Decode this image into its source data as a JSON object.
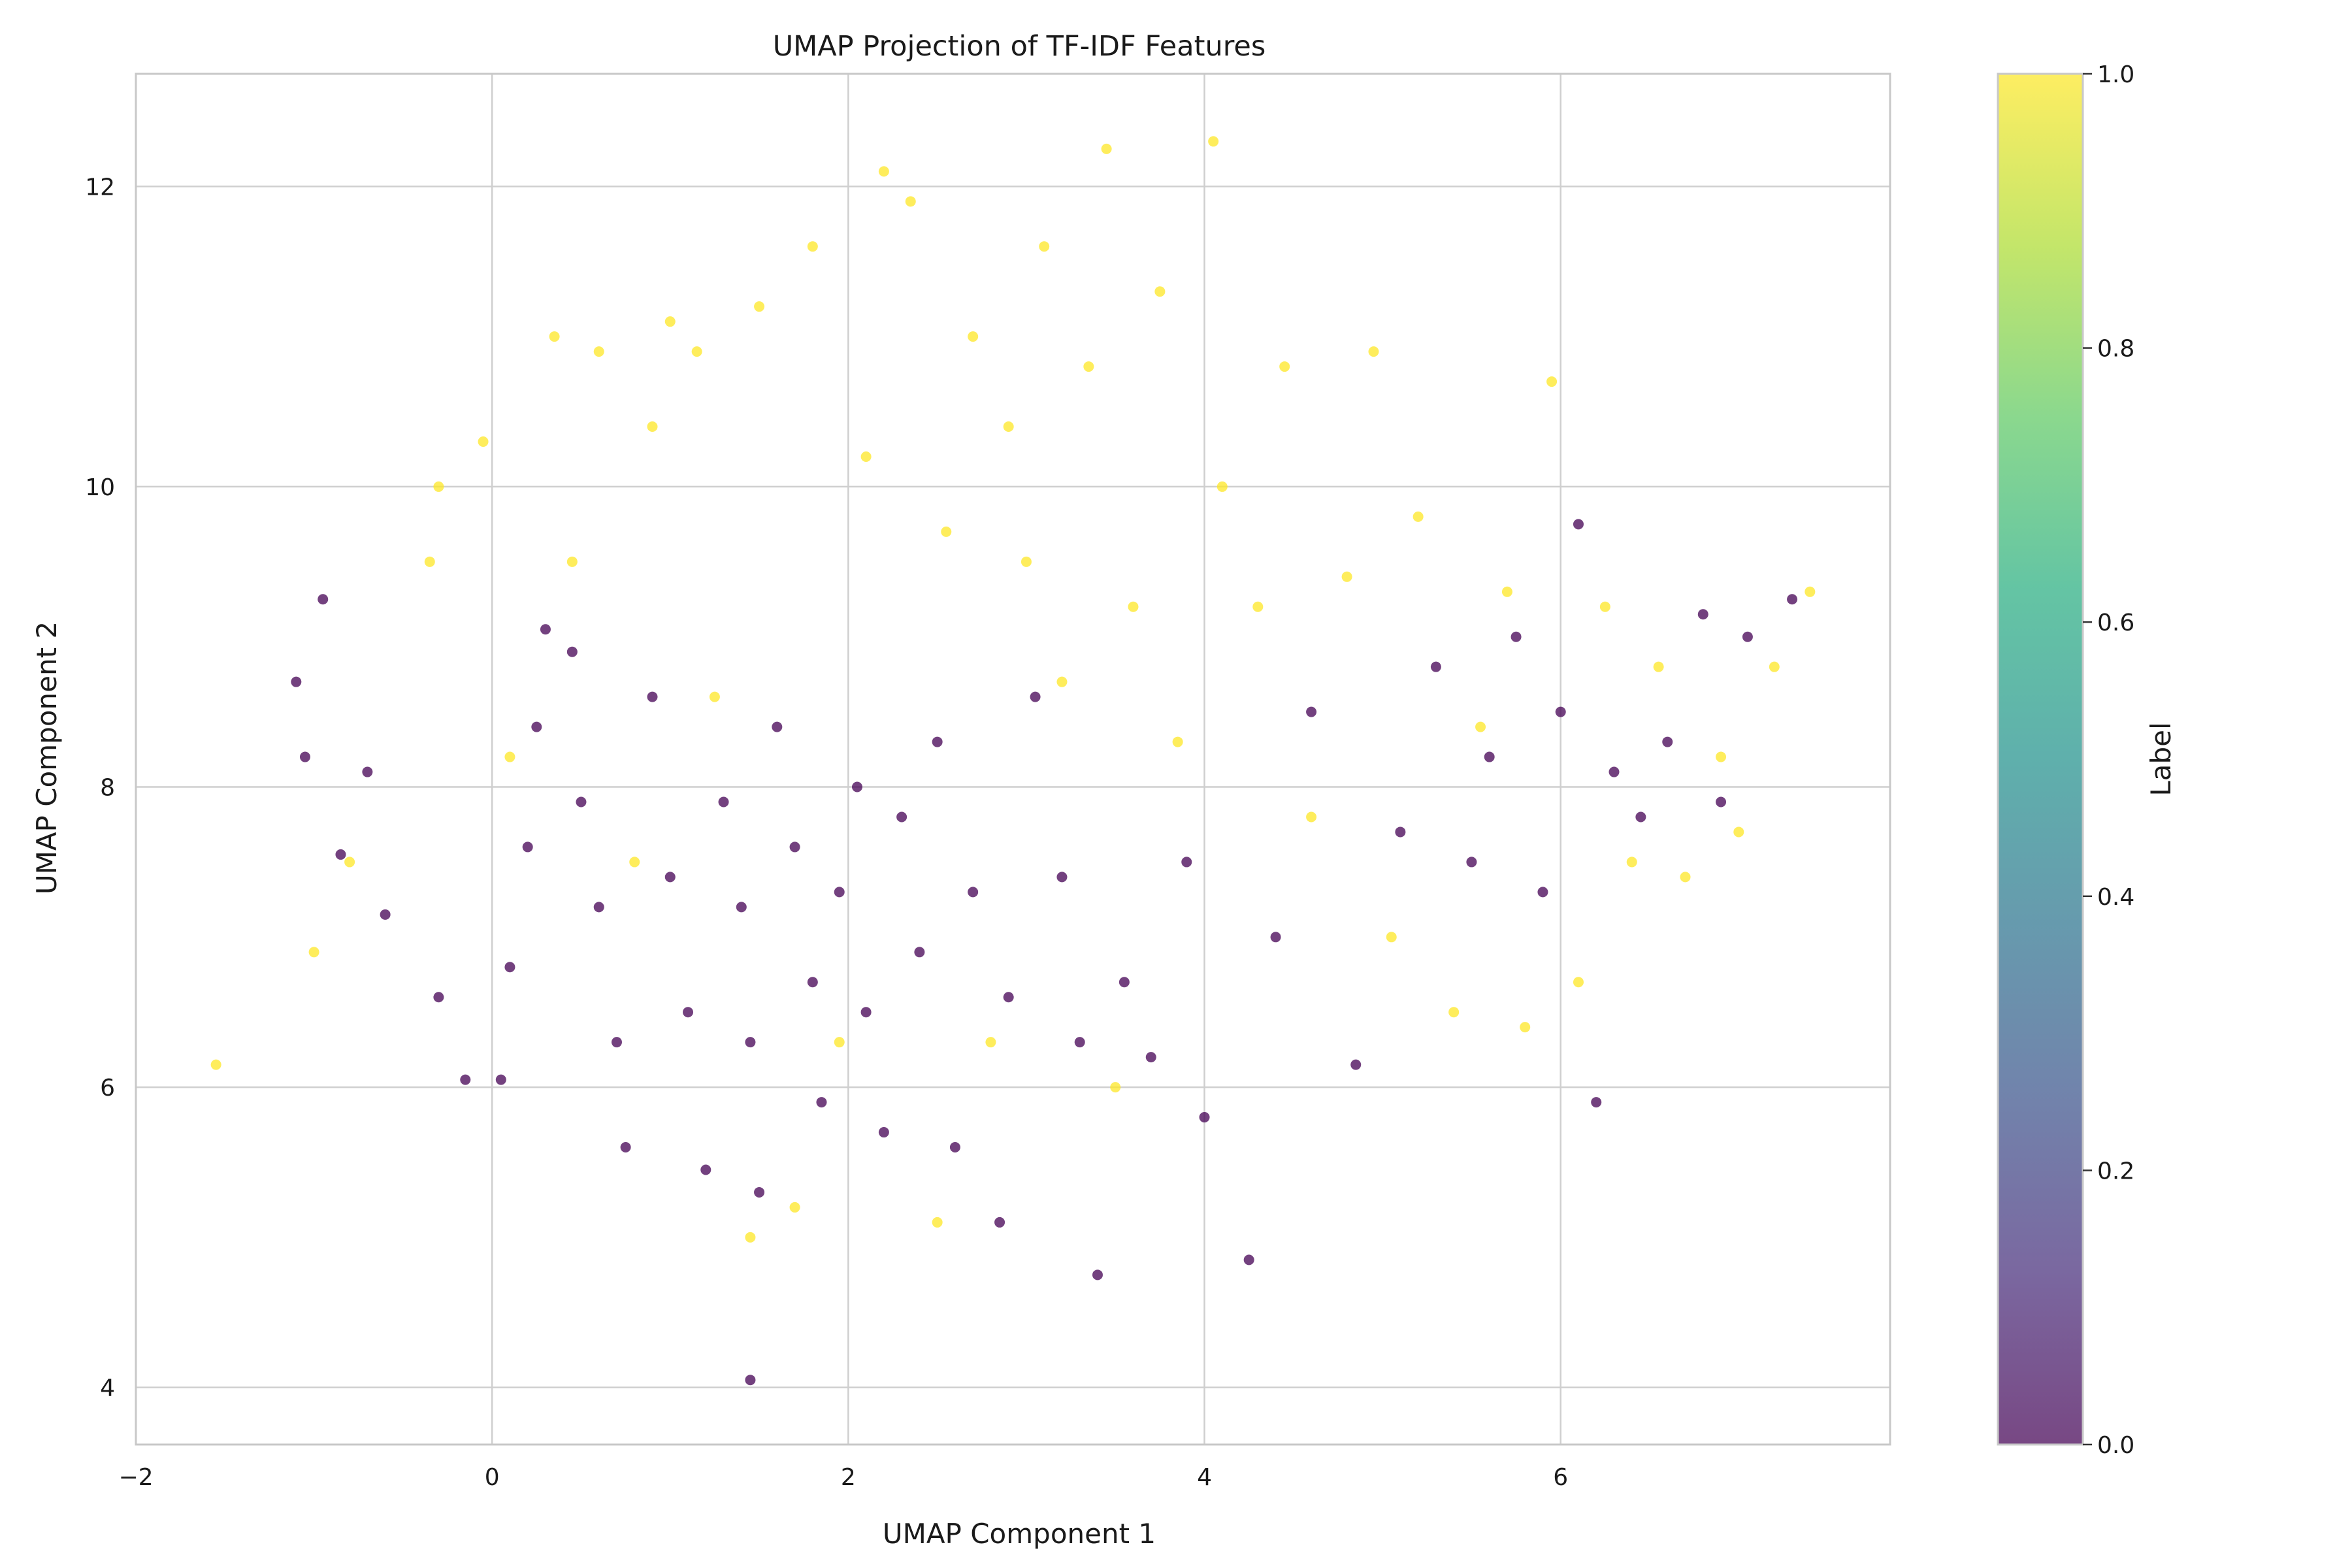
{
  "chart_data": {
    "type": "scatter",
    "title": "UMAP Projection of TF-IDF Features",
    "xlabel": "UMAP Component 1",
    "ylabel": "UMAP Component 2",
    "xlim": [
      -2,
      7.85
    ],
    "ylim": [
      3.62,
      12.75
    ],
    "xticks": [
      -2,
      0,
      2,
      4,
      6
    ],
    "yticks": [
      4,
      6,
      8,
      10,
      12
    ],
    "grid": true,
    "colorbar": {
      "label": "Label",
      "range": [
        0,
        1
      ],
      "ticks": [
        "0.0",
        "0.2",
        "0.4",
        "0.6",
        "0.8",
        "1.0"
      ],
      "colormap": "viridis",
      "alpha": 0.7
    },
    "series": [
      {
        "label_value": 0,
        "color": "#440154",
        "points": [
          [
            -0.95,
            9.25
          ],
          [
            -1.1,
            8.7
          ],
          [
            -1.05,
            8.2
          ],
          [
            -0.85,
            7.55
          ],
          [
            -0.7,
            8.1
          ],
          [
            -0.6,
            7.15
          ],
          [
            -0.3,
            6.6
          ],
          [
            -0.15,
            6.05
          ],
          [
            0.05,
            6.05
          ],
          [
            0.1,
            6.8
          ],
          [
            0.2,
            7.6
          ],
          [
            0.25,
            8.4
          ],
          [
            0.3,
            9.05
          ],
          [
            0.45,
            8.9
          ],
          [
            0.5,
            7.9
          ],
          [
            0.6,
            7.2
          ],
          [
            0.7,
            6.3
          ],
          [
            0.75,
            5.6
          ],
          [
            0.9,
            8.6
          ],
          [
            1.0,
            7.4
          ],
          [
            1.1,
            6.5
          ],
          [
            1.2,
            5.45
          ],
          [
            1.3,
            7.9
          ],
          [
            1.4,
            7.2
          ],
          [
            1.45,
            6.3
          ],
          [
            1.5,
            5.3
          ],
          [
            1.6,
            8.4
          ],
          [
            1.7,
            7.6
          ],
          [
            1.8,
            6.7
          ],
          [
            1.85,
            5.9
          ],
          [
            1.95,
            7.3
          ],
          [
            2.05,
            8.0
          ],
          [
            2.1,
            6.5
          ],
          [
            2.2,
            5.7
          ],
          [
            2.3,
            7.8
          ],
          [
            2.4,
            6.9
          ],
          [
            2.5,
            8.3
          ],
          [
            2.6,
            5.6
          ],
          [
            2.7,
            7.3
          ],
          [
            2.85,
            5.1
          ],
          [
            2.9,
            6.6
          ],
          [
            3.05,
            8.6
          ],
          [
            3.2,
            7.4
          ],
          [
            3.3,
            6.3
          ],
          [
            3.4,
            4.75
          ],
          [
            3.55,
            6.7
          ],
          [
            3.7,
            6.2
          ],
          [
            3.9,
            7.5
          ],
          [
            4.0,
            5.8
          ],
          [
            4.25,
            4.85
          ],
          [
            4.4,
            7.0
          ],
          [
            4.6,
            8.5
          ],
          [
            4.85,
            6.15
          ],
          [
            5.1,
            7.7
          ],
          [
            5.3,
            8.8
          ],
          [
            5.5,
            7.5
          ],
          [
            5.6,
            8.2
          ],
          [
            5.75,
            9.0
          ],
          [
            5.9,
            7.3
          ],
          [
            6.0,
            8.5
          ],
          [
            6.1,
            9.75
          ],
          [
            6.2,
            5.9
          ],
          [
            6.3,
            8.1
          ],
          [
            6.45,
            7.8
          ],
          [
            6.6,
            8.3
          ],
          [
            6.8,
            9.15
          ],
          [
            6.9,
            7.9
          ],
          [
            7.05,
            9.0
          ],
          [
            7.3,
            9.25
          ],
          [
            1.45,
            4.05
          ]
        ]
      },
      {
        "label_value": 1,
        "color": "#fde725",
        "points": [
          [
            -1.55,
            6.15
          ],
          [
            -1.0,
            6.9
          ],
          [
            -0.8,
            7.5
          ],
          [
            -0.35,
            9.5
          ],
          [
            -0.3,
            10.0
          ],
          [
            -0.05,
            10.3
          ],
          [
            0.1,
            8.2
          ],
          [
            0.35,
            11.0
          ],
          [
            0.45,
            9.5
          ],
          [
            0.6,
            10.9
          ],
          [
            0.8,
            7.5
          ],
          [
            0.9,
            10.4
          ],
          [
            1.0,
            11.1
          ],
          [
            1.15,
            10.9
          ],
          [
            1.25,
            8.6
          ],
          [
            1.45,
            5.0
          ],
          [
            1.5,
            11.2
          ],
          [
            1.7,
            5.2
          ],
          [
            1.8,
            11.6
          ],
          [
            1.95,
            6.3
          ],
          [
            2.1,
            10.2
          ],
          [
            2.2,
            12.1
          ],
          [
            2.35,
            11.9
          ],
          [
            2.5,
            5.1
          ],
          [
            2.55,
            9.7
          ],
          [
            2.7,
            11.0
          ],
          [
            2.8,
            6.3
          ],
          [
            2.9,
            10.4
          ],
          [
            3.0,
            9.5
          ],
          [
            3.1,
            11.6
          ],
          [
            3.2,
            8.7
          ],
          [
            3.35,
            10.8
          ],
          [
            3.45,
            12.25
          ],
          [
            3.5,
            6.0
          ],
          [
            3.6,
            9.2
          ],
          [
            3.75,
            11.3
          ],
          [
            3.85,
            8.3
          ],
          [
            4.05,
            12.3
          ],
          [
            4.1,
            10.0
          ],
          [
            4.3,
            9.2
          ],
          [
            4.45,
            10.8
          ],
          [
            4.6,
            7.8
          ],
          [
            4.8,
            9.4
          ],
          [
            4.95,
            10.9
          ],
          [
            5.05,
            7.0
          ],
          [
            5.2,
            9.8
          ],
          [
            5.4,
            6.5
          ],
          [
            5.55,
            8.4
          ],
          [
            5.7,
            9.3
          ],
          [
            5.8,
            6.4
          ],
          [
            5.95,
            10.7
          ],
          [
            6.1,
            6.7
          ],
          [
            6.25,
            9.2
          ],
          [
            6.4,
            7.5
          ],
          [
            6.55,
            8.8
          ],
          [
            6.7,
            7.4
          ],
          [
            6.9,
            8.2
          ],
          [
            7.0,
            7.7
          ],
          [
            7.2,
            8.8
          ],
          [
            7.4,
            9.3
          ]
        ]
      }
    ]
  }
}
